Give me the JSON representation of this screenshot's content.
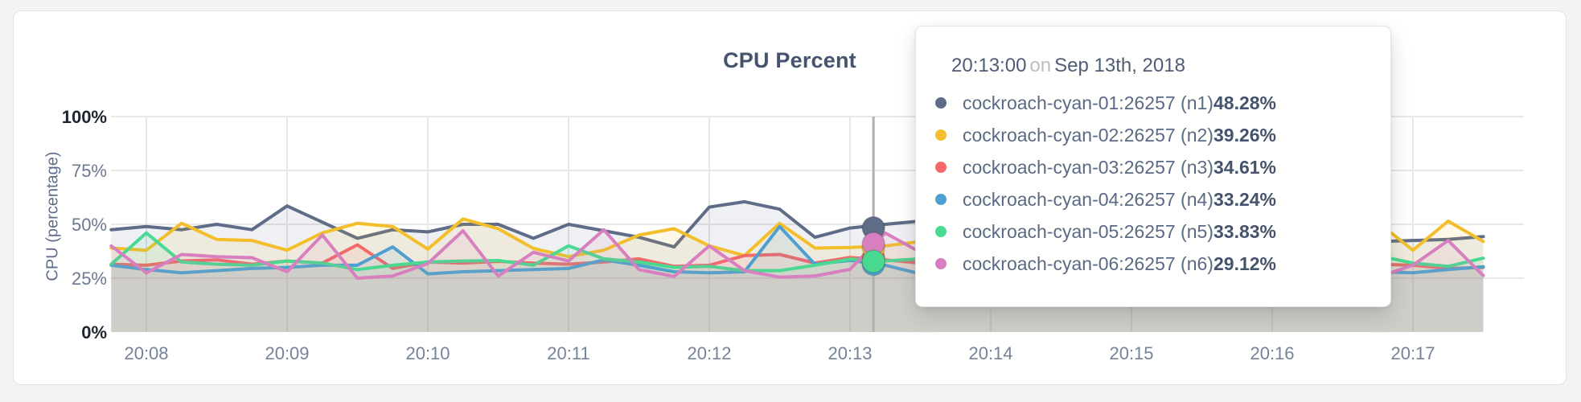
{
  "page": {
    "background": "#f3f3f4"
  },
  "chart_data": {
    "type": "line",
    "title": "CPU Percent",
    "xlabel": "",
    "ylabel": "CPU (percentage)",
    "ylim": [
      0,
      100
    ],
    "grid": true,
    "legend_position": "tooltip",
    "y_ticks": [
      {
        "label": "0%",
        "value": 0
      },
      {
        "label": "25%",
        "value": 25
      },
      {
        "label": "50%",
        "value": 50
      },
      {
        "label": "75%",
        "value": 75
      },
      {
        "label": "100%",
        "value": 100
      }
    ],
    "x_ticks": [
      "20:08",
      "20:09",
      "20:10",
      "20:11",
      "20:12",
      "20:13",
      "20:14",
      "20:15",
      "20:16",
      "20:17"
    ],
    "x_start": "20:07:45",
    "x_end": "20:17:30",
    "x_step_sec": 15,
    "series": [
      {
        "name": "cockroach-cyan-01:26257 (n1)",
        "node": "n1",
        "color": "#5F6C87",
        "values": [
          47.5,
          49,
          47.5,
          50,
          47.5,
          58.5,
          51,
          43.5,
          47.5,
          46.5,
          50,
          50,
          43.5,
          50,
          47,
          44,
          39.5,
          58,
          60.5,
          57,
          44,
          48.28,
          50,
          51.5,
          48,
          47,
          49,
          47.5,
          46,
          48,
          47,
          49,
          47,
          46,
          48,
          45,
          42,
          42.5,
          43,
          44.3
        ]
      },
      {
        "name": "cockroach-cyan-02:26257 (n2)",
        "node": "n2",
        "color": "#F2BE2C",
        "values": [
          39,
          38,
          50.5,
          43,
          42.5,
          38,
          46,
          50.5,
          49,
          38.5,
          52.5,
          48,
          38.8,
          35,
          38,
          45,
          48,
          40,
          35.5,
          50.5,
          39,
          39.26,
          40,
          42,
          45,
          43,
          40,
          44,
          47,
          42,
          39,
          43,
          46,
          42,
          45,
          48,
          51,
          38,
          51.5,
          42
        ]
      },
      {
        "name": "cockroach-cyan-03:26257 (n3)",
        "node": "n3",
        "color": "#F16969",
        "values": [
          31.5,
          31,
          33,
          33.5,
          31.5,
          33,
          32,
          40.5,
          29.5,
          32.5,
          32,
          32.8,
          32,
          31.5,
          32.5,
          34,
          30.5,
          31,
          35.5,
          36,
          32,
          34.61,
          33.5,
          32,
          33,
          34,
          32.5,
          33.5,
          32,
          34,
          33,
          32,
          33.5,
          32.5,
          31.5,
          32,
          31.5,
          31,
          29.5,
          30
        ]
      },
      {
        "name": "cockroach-cyan-04:26257 (n4)",
        "node": "n4",
        "color": "#4E9FD1",
        "values": [
          31,
          29,
          27.5,
          28.5,
          29.5,
          30,
          31,
          31,
          39.5,
          27,
          28,
          28.5,
          29,
          29.5,
          33.5,
          31,
          28,
          27.5,
          28,
          49,
          31.5,
          33.24,
          31,
          27,
          29,
          30,
          29,
          31,
          30,
          28.5,
          30,
          29,
          31,
          30,
          28.5,
          29.5,
          28,
          27.5,
          29,
          30.3
        ]
      },
      {
        "name": "cockroach-cyan-05:26257 (n5)",
        "node": "n5",
        "color": "#49D990",
        "values": [
          31.5,
          46,
          32.5,
          31.5,
          31,
          33,
          32,
          29,
          31,
          32.5,
          33,
          33.2,
          31,
          40,
          34,
          32.5,
          30,
          30.5,
          28.5,
          28.5,
          31,
          33.83,
          33,
          34,
          33,
          32,
          33.5,
          32.5,
          33,
          32,
          33,
          32.5,
          33,
          32,
          33.5,
          34.5,
          35.5,
          32,
          30.5,
          34.3
        ]
      },
      {
        "name": "cockroach-cyan-06:26257 (n6)",
        "node": "n6",
        "color": "#D77FBF",
        "values": [
          40,
          27.5,
          36,
          35,
          34.5,
          28,
          45,
          25,
          26,
          31.8,
          47,
          26,
          37,
          33,
          47.5,
          29,
          25.8,
          40,
          28.5,
          25.5,
          26,
          29.12,
          46,
          37,
          28,
          26,
          30,
          27,
          25,
          28,
          26.5,
          29,
          27,
          30,
          28,
          26,
          25.5,
          31,
          42.5,
          26.2
        ]
      }
    ]
  },
  "tooltip": {
    "time": "20:13:00",
    "on_word": "on",
    "date": "Sep 13th, 2018",
    "rows": [
      {
        "label": "cockroach-cyan-01:26257 (n1)",
        "value": "48.28%",
        "color": "#5F6C87"
      },
      {
        "label": "cockroach-cyan-02:26257 (n2)",
        "value": "39.26%",
        "color": "#F2BE2C"
      },
      {
        "label": "cockroach-cyan-03:26257 (n3)",
        "value": "34.61%",
        "color": "#F16969"
      },
      {
        "label": "cockroach-cyan-04:26257 (n4)",
        "value": "33.24%",
        "color": "#4E9FD1"
      },
      {
        "label": "cockroach-cyan-05:26257 (n5)",
        "value": "33.83%",
        "color": "#49D990"
      },
      {
        "label": "cockroach-cyan-06:26257 (n6)",
        "value": "29.12%",
        "color": "#D77FBF"
      }
    ]
  },
  "hover": {
    "time": "20:13:10",
    "line_color": "#b0b0b0",
    "markers": [
      {
        "color": "#5F6C87",
        "value": 48.3
      },
      {
        "color": "#F16969",
        "value": 34.6
      },
      {
        "color": "#4E9FD1",
        "value": 31.5
      },
      {
        "color": "#F2BE2C",
        "value": 39.3
      },
      {
        "color": "#D77FBF",
        "value": 41.0
      },
      {
        "color": "#49D990",
        "value": 32.8
      }
    ]
  },
  "colors": {
    "grid": "#e7e7e7",
    "axis_tick_mid": "#6b7990",
    "axis_tick_end": "#1e2430",
    "x_tick": "#75829a"
  }
}
